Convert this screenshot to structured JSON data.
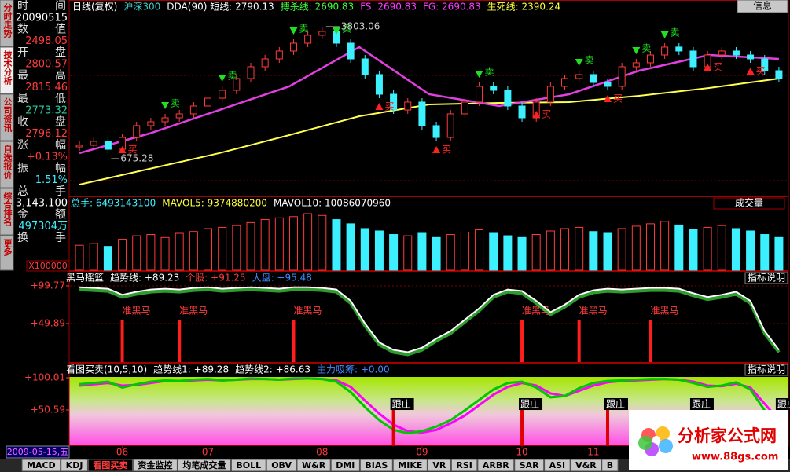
{
  "sidebar_tabs": [
    "分时走势",
    "技术分析",
    "公司资讯",
    "自选报价",
    "综合排名",
    "更多"
  ],
  "info_panel": [
    {
      "label": "时间",
      "value": "20090515"
    },
    {
      "label": "数值",
      "value": "2498.05"
    },
    {
      "label": "开盘",
      "value": "2800.57"
    },
    {
      "label": "最高",
      "value": "2815.46"
    },
    {
      "label": "最低",
      "value": "2773.32"
    },
    {
      "label": "收盘",
      "value": "2796.12"
    },
    {
      "label": "涨幅",
      "value": "+0.13%"
    },
    {
      "label": "振幅",
      "value": "1.51%"
    },
    {
      "label": "总手",
      "value": "3,143,100"
    },
    {
      "label": "金额",
      "value": "497304万"
    },
    {
      "label": "换手"
    }
  ],
  "main_panel": {
    "header": [
      "日线(复权)",
      "沪深300",
      "DDA(90) 短线: 2790.13",
      "搏杀线: 2690.83",
      "FS: 2690.83",
      "FG: 2690.83",
      "生死线: 2390.24"
    ],
    "info_button": "信息",
    "high_label": "3803.06",
    "low_label": "675.28",
    "close": [
      1832,
      1898,
      1766,
      1963,
      2161,
      2226,
      2292,
      2358,
      2489,
      2620,
      2752,
      2949,
      3146,
      3277,
      3409,
      3540,
      3672,
      3737,
      3540,
      3277,
      3015,
      2686,
      2423,
      2555,
      2161,
      1963,
      2358,
      2555,
      2818,
      2752,
      2489,
      2292,
      2555,
      2818,
      2949,
      3015,
      2883,
      2818,
      3146,
      3212,
      3343,
      3475,
      3409,
      3146,
      3343,
      3409,
      3343,
      3277,
      3080,
      2949
    ],
    "ma_short": [
      1701,
      2029,
      2423,
      2818,
      3475,
      2686,
      2489,
      2686,
      3080,
      3343,
      3277
    ],
    "ma_long": [
      1175,
      1438,
      1701,
      2003,
      2318,
      2515,
      2541,
      2555,
      2660,
      2791,
      2949
    ],
    "signals": [
      null,
      null,
      null,
      "买",
      null,
      null,
      "卖",
      null,
      null,
      null,
      "卖",
      null,
      null,
      null,
      null,
      "卖",
      null,
      null,
      "卖",
      null,
      null,
      "买",
      null,
      null,
      null,
      "买",
      null,
      null,
      "卖",
      null,
      null,
      null,
      "买",
      null,
      null,
      "卖",
      null,
      "买",
      null,
      "卖",
      null,
      "卖",
      null,
      null,
      "买",
      null,
      null,
      "买",
      null,
      null
    ]
  },
  "volume_panel": {
    "header": [
      "总手: 6493143100",
      "MAVOL5: 9374880200",
      "MAVOL10: 10086070960"
    ],
    "selector": "成交量",
    "unit": "X100000",
    "values": [
      42000,
      45000,
      40000,
      52000,
      58000,
      60000,
      55000,
      62000,
      65000,
      70000,
      72000,
      75000,
      80000,
      85000,
      88000,
      90000,
      95000,
      92000,
      85000,
      78000,
      70000,
      66000,
      60000,
      58000,
      62000,
      55000,
      60000,
      64000,
      68000,
      62000,
      58000,
      55000,
      60000,
      66000,
      70000,
      72000,
      65000,
      62000,
      70000,
      74000,
      78000,
      82000,
      76000,
      68000,
      72000,
      75000,
      70000,
      66000,
      60000,
      55000
    ]
  },
  "heima_panel": {
    "header": [
      "黑马摇篮",
      "趋势线: +89.23",
      "个股: +91.25",
      "大盘: +95.48"
    ],
    "help": "指标说明",
    "yticks": [
      {
        "value": 99.77,
        "label": "+99.77"
      },
      {
        "value": 49.89,
        "label": "+49.89"
      }
    ],
    "values": [
      98,
      97,
      96,
      88,
      92,
      95,
      96,
      95,
      97,
      98,
      96,
      97,
      98,
      97,
      96,
      98,
      98,
      97,
      95,
      80,
      50,
      25,
      15,
      12,
      18,
      30,
      40,
      55,
      70,
      88,
      95,
      93,
      80,
      65,
      75,
      88,
      94,
      96,
      95,
      96,
      97,
      97,
      96,
      90,
      85,
      88,
      92,
      80,
      40,
      15
    ],
    "signals": [
      null,
      null,
      null,
      "准黑马",
      null,
      null,
      null,
      "准黑马",
      null,
      null,
      null,
      null,
      null,
      null,
      null,
      "准黑马",
      null,
      null,
      null,
      null,
      null,
      null,
      null,
      null,
      null,
      null,
      null,
      null,
      null,
      null,
      null,
      "准黑马",
      null,
      null,
      null,
      "准黑马",
      null,
      null,
      null,
      null,
      "准黑马",
      null,
      null,
      null,
      null,
      null,
      null,
      null,
      null,
      null
    ]
  },
  "kantu_panel": {
    "header": [
      "看图买卖(10,5,10)",
      "趋势线1: +89.28",
      "趋势线2: +86.63",
      "主力吸筹: +0.00"
    ],
    "help": "指标说明",
    "yticks": [
      {
        "value": 100.01,
        "label": "+100.01"
      },
      {
        "value": 50.59,
        "label": "+50.59"
      }
    ],
    "trend1": [
      90,
      92,
      94,
      85,
      90,
      94,
      96,
      95,
      97,
      98,
      96,
      97,
      99,
      98,
      97,
      99,
      99,
      98,
      94,
      78,
      55,
      35,
      20,
      15,
      18,
      25,
      35,
      50,
      66,
      82,
      92,
      94,
      85,
      70,
      72,
      84,
      92,
      95,
      96,
      97,
      98,
      98,
      97,
      92,
      86,
      88,
      93,
      82,
      50,
      25
    ],
    "trend2": [
      88,
      90,
      92,
      88,
      89,
      92,
      95,
      95,
      96,
      97,
      96,
      97,
      98,
      98,
      97,
      98,
      99,
      98,
      96,
      86,
      65,
      45,
      28,
      18,
      16,
      20,
      30,
      42,
      58,
      74,
      86,
      92,
      88,
      76,
      72,
      80,
      88,
      93,
      95,
      96,
      97,
      98,
      97,
      94,
      88,
      87,
      91,
      85,
      60,
      35
    ],
    "signals": [
      null,
      null,
      null,
      null,
      null,
      null,
      null,
      null,
      null,
      null,
      null,
      null,
      null,
      null,
      null,
      null,
      null,
      null,
      null,
      null,
      null,
      null,
      "跟庄",
      null,
      null,
      null,
      null,
      null,
      null,
      null,
      null,
      "跟庄",
      null,
      null,
      null,
      null,
      null,
      "跟庄",
      null,
      null,
      null,
      null,
      null,
      "跟庄",
      null,
      null,
      null,
      null,
      null,
      "跟庄"
    ]
  },
  "x_labels": [
    null,
    null,
    null,
    "06",
    null,
    null,
    null,
    null,
    null,
    "07",
    null,
    null,
    null,
    null,
    null,
    null,
    null,
    "08",
    null,
    null,
    null,
    null,
    null,
    null,
    "09",
    null,
    null,
    null,
    null,
    null,
    null,
    "10",
    null,
    null,
    null,
    null,
    "11",
    null,
    null,
    null,
    null,
    null,
    null,
    null,
    null,
    null,
    null,
    null,
    null,
    null
  ],
  "cursor_date": "2009-05-15,五",
  "bottom_tabs": [
    "MACD",
    "KDJ",
    "看图买卖",
    "资金监控",
    "均笔成交量",
    "BOLL",
    "OBV",
    "W&R",
    "DMI",
    "BIAS",
    "MIKE",
    "VR",
    "RSI",
    "ARBR",
    "SAR",
    "ASI",
    "V&R",
    "B"
  ],
  "watermark": {
    "title": "分析家公式网",
    "url": "www.88gs.com"
  }
}
